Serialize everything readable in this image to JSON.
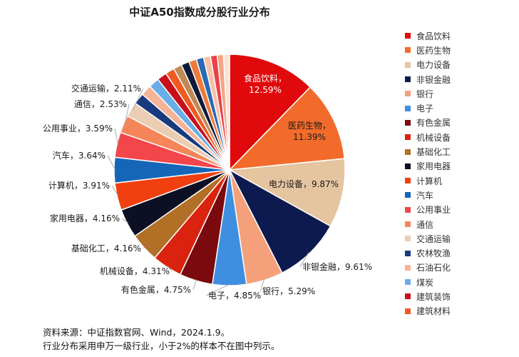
{
  "chart_data": {
    "type": "pie",
    "title": "中证A50指数成分股行业分布",
    "slices": [
      {
        "label": "食品饮料",
        "value": 12.59,
        "value_label": "12.59%",
        "color": "#e0090b"
      },
      {
        "label": "医药生物",
        "value": 11.39,
        "value_label": "11.39%",
        "color": "#f26b2a"
      },
      {
        "label": "电力设备",
        "value": 9.87,
        "value_label": "9.87%",
        "color": "#e5c4a0"
      },
      {
        "label": "非银金融",
        "value": 9.61,
        "value_label": "9.61%",
        "color": "#0c1a4f"
      },
      {
        "label": "银行",
        "value": 5.29,
        "value_label": "5.29%",
        "color": "#f4a07a"
      },
      {
        "label": "电子",
        "value": 4.85,
        "value_label": "4.85%",
        "color": "#3f8fe0"
      },
      {
        "label": "有色金属",
        "value": 4.75,
        "value_label": "4.75%",
        "color": "#7a0a0e"
      },
      {
        "label": "机械设备",
        "value": 4.31,
        "value_label": "4.31%",
        "color": "#d9230f"
      },
      {
        "label": "基础化工",
        "value": 4.16,
        "value_label": "4.16%",
        "color": "#b26f26"
      },
      {
        "label": "家用电器",
        "value": 4.16,
        "value_label": "4.16%",
        "color": "#0d0f24"
      },
      {
        "label": "计算机",
        "value": 3.91,
        "value_label": "3.91%",
        "color": "#f04010"
      },
      {
        "label": "汽车",
        "value": 3.64,
        "value_label": "3.64%",
        "color": "#1566b8"
      },
      {
        "label": "公用事业",
        "value": 3.59,
        "value_label": "3.59%",
        "color": "#f2464a"
      },
      {
        "label": "通信",
        "value": 2.53,
        "value_label": "2.53%",
        "color": "#f4865a"
      },
      {
        "label": "交通运输",
        "value": 2.11,
        "value_label": "2.11%",
        "color": "#ebcdb4"
      },
      {
        "label": "农林牧渔",
        "value": 1.6,
        "value_label": "",
        "color": "#1a3a7e"
      },
      {
        "label": "石油石化",
        "value": 1.55,
        "value_label": "",
        "color": "#f6b497"
      },
      {
        "label": "煤炭",
        "value": 1.5,
        "value_label": "",
        "color": "#6aaee8"
      },
      {
        "label": "建筑装饰",
        "value": 1.4,
        "value_label": "",
        "color": "#c8101a"
      },
      {
        "label": "建筑材料",
        "value": 1.3,
        "value_label": "",
        "color": "#f05a20"
      },
      {
        "label": "",
        "value": 1.2,
        "value_label": "",
        "color": "#c08a55"
      },
      {
        "label": "",
        "value": 1.15,
        "value_label": "",
        "color": "#101a3a"
      },
      {
        "label": "",
        "value": 1.1,
        "value_label": "",
        "color": "#f07a3a"
      },
      {
        "label": "",
        "value": 1.05,
        "value_label": "",
        "color": "#2a6ab4"
      },
      {
        "label": "",
        "value": 1.0,
        "value_label": "",
        "color": "#f7c0a8"
      },
      {
        "label": "",
        "value": 0.95,
        "value_label": "",
        "color": "#e8424a"
      },
      {
        "label": "",
        "value": 0.9,
        "value_label": "",
        "color": "#f4a585"
      },
      {
        "label": "",
        "value": 0.86,
        "value_label": "",
        "color": "#fbe0d4"
      }
    ],
    "legend_position": "right",
    "legend": [
      "食品饮料",
      "医药生物",
      "电力设备",
      "非银金融",
      "银行",
      "电子",
      "有色金属",
      "机械设备",
      "基础化工",
      "家用电器",
      "计算机",
      "汽车",
      "公用事业",
      "通信",
      "交通运输",
      "农林牧渔",
      "石油石化",
      "煤炭",
      "建筑装饰",
      "建筑材料"
    ]
  },
  "source": {
    "line1": "资料来源：中证指数官网、Wind，2024.1.9。",
    "line2": "行业分布采用申万一级行业，小于2%的样本不在图中列示。"
  }
}
